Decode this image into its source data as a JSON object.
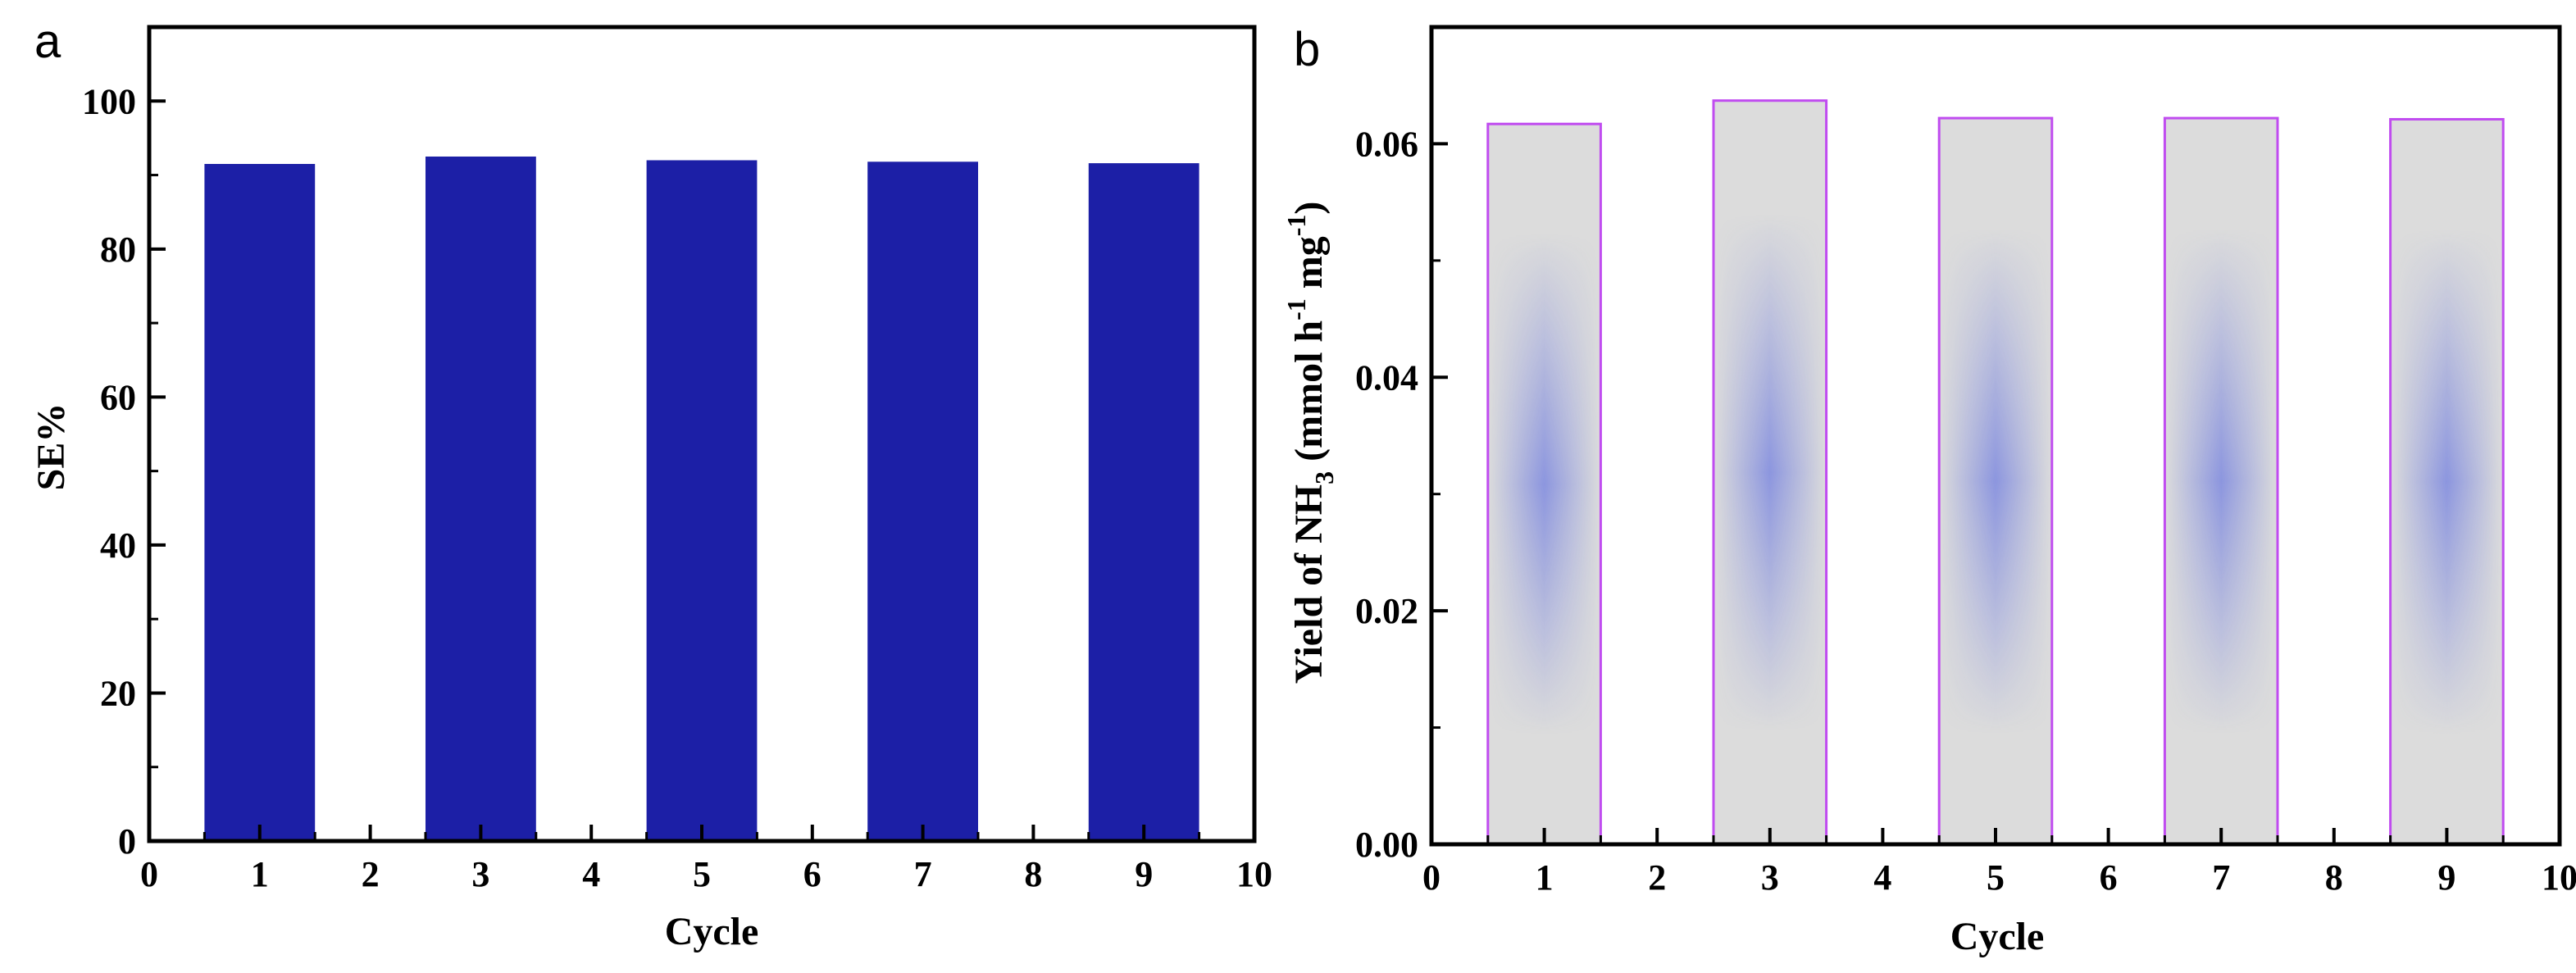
{
  "chart_data": [
    {
      "type": "bar",
      "panel_label": "a",
      "xlabel": "Cycle",
      "ylabel": "SE%",
      "xlim": [
        0,
        10
      ],
      "ylim": [
        0,
        110
      ],
      "x_ticks": [
        "0",
        "1",
        "2",
        "3",
        "4",
        "5",
        "6",
        "7",
        "8",
        "9",
        "10"
      ],
      "y_ticks": [
        "0",
        "20",
        "40",
        "60",
        "80",
        "100"
      ],
      "x": [
        1,
        3,
        5,
        7,
        9
      ],
      "values": [
        91.5,
        92.5,
        92.0,
        91.8,
        91.6
      ],
      "bar_width": 1.0,
      "bar_color": "#1c1fa6"
    },
    {
      "type": "bar",
      "panel_label": "b",
      "xlabel": "Cycle",
      "ylabel": {
        "prefix": "Yield of NH",
        "sub": "3",
        "middle": " (mmol h",
        "sup1": "-1",
        "unit2": " mg",
        "sup2": "-1",
        "suffix": ")"
      },
      "xlim": [
        0,
        10
      ],
      "ylim": [
        0,
        0.07
      ],
      "x_ticks": [
        "0",
        "1",
        "2",
        "3",
        "4",
        "5",
        "6",
        "7",
        "8",
        "9",
        "10"
      ],
      "y_ticks": [
        "0.00",
        "0.02",
        "0.04",
        "0.06"
      ],
      "x": [
        1,
        3,
        5,
        7,
        9
      ],
      "values": [
        0.0617,
        0.0637,
        0.0622,
        0.0622,
        0.0621
      ],
      "bar_width": 1.0,
      "bar_fill": "#dcdcdc",
      "bar_glow": "#5f6ee0",
      "bar_edge": "#c04cf0"
    }
  ]
}
